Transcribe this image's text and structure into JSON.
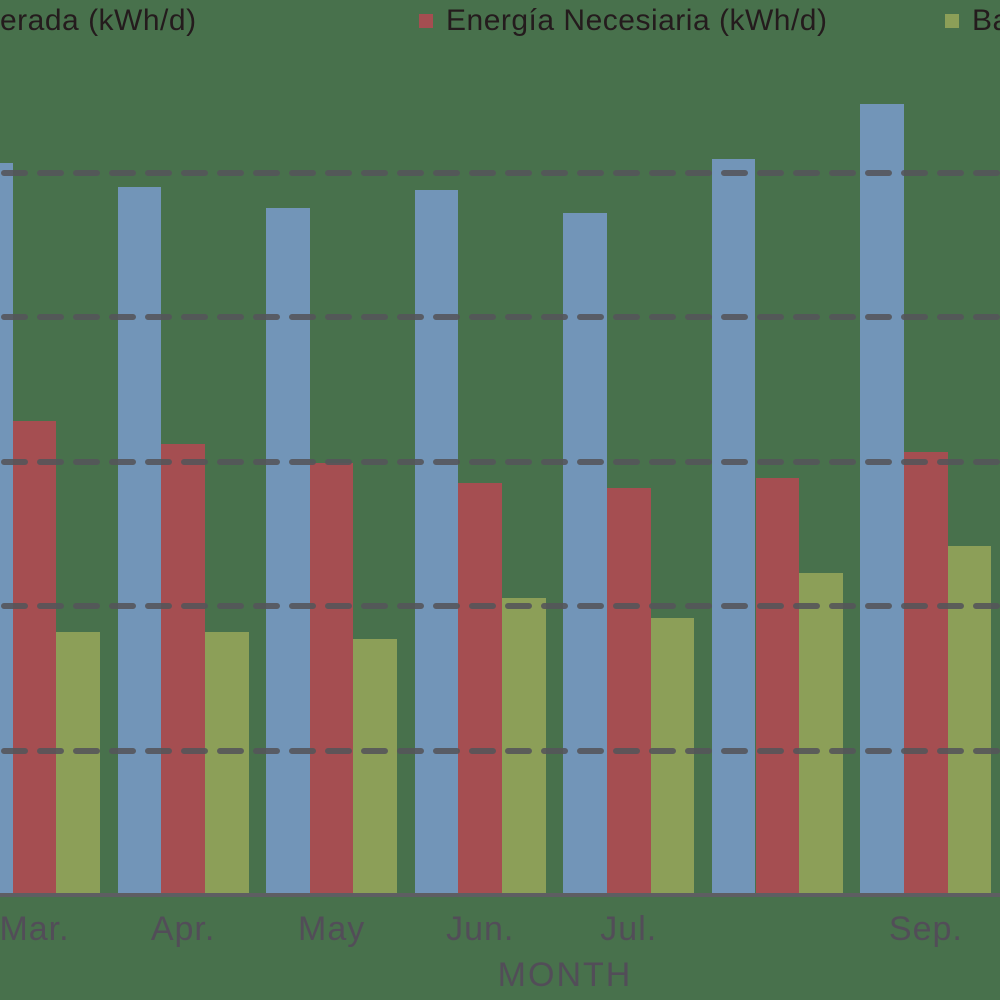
{
  "colors": {
    "background": "#48714c",
    "series_blue": "#7295b8",
    "series_red": "#a54e51",
    "series_olive": "#8c9f58",
    "gridline": "#55555a",
    "axis_line": "#5e5e62",
    "tick_text": "#524d58",
    "legend_text": "#241b1d"
  },
  "legend": {
    "items": [
      {
        "label": "erada (kWh/d)",
        "swatch_color": "",
        "swatch_visible": false
      },
      {
        "label": "Energía Necesiaria (kWh/d)",
        "swatch_color": "#a54e51",
        "swatch_visible": true
      },
      {
        "label": "Ba",
        "swatch_color": "#8c9f58",
        "swatch_visible": true
      }
    ]
  },
  "x_axis": {
    "title": "MONTH",
    "tick_labels": [
      "Mar.",
      "Apr.",
      "May",
      "Jun.",
      "Jul.",
      "",
      "Sep."
    ]
  },
  "chart_data": {
    "type": "bar",
    "categories": [
      "Mar.",
      "Apr.",
      "May",
      "Jun.",
      "Jul.",
      "",
      "Sep."
    ],
    "series": [
      {
        "name": "erada (kWh/d)",
        "color": "#7295b8",
        "values": [
          5.07,
          4.9,
          4.76,
          4.88,
          4.72,
          5.1,
          5.48
        ]
      },
      {
        "name": "Energía Necesiaria (kWh/d)",
        "color": "#a54e51",
        "values": [
          3.28,
          3.12,
          2.99,
          2.85,
          2.82,
          2.89,
          3.07
        ]
      },
      {
        "name": "Ba",
        "color": "#8c9f58",
        "values": [
          1.82,
          1.82,
          1.77,
          2.06,
          1.92,
          2.23,
          2.42
        ]
      }
    ],
    "title": "",
    "xlabel": "MONTH",
    "ylabel": "",
    "ylim": [
      0,
      6.2
    ],
    "gridline_values": [
      1,
      2,
      3,
      4,
      5
    ],
    "grid": "dashed horizontal, drawn above bars",
    "legend_position": "top",
    "y_tick_labels_visible": false
  }
}
